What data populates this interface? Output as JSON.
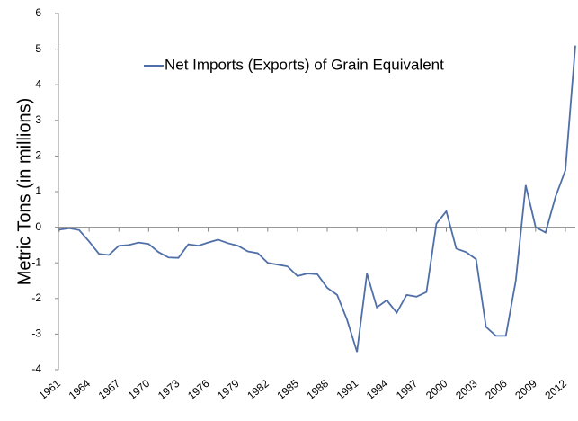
{
  "chart_data": {
    "type": "line",
    "y_label": "Metric Tons (in millions)",
    "x": [
      1961,
      1962,
      1963,
      1964,
      1965,
      1966,
      1967,
      1968,
      1969,
      1970,
      1971,
      1972,
      1973,
      1974,
      1975,
      1976,
      1977,
      1978,
      1979,
      1980,
      1981,
      1982,
      1983,
      1984,
      1985,
      1986,
      1987,
      1988,
      1989,
      1990,
      1991,
      1992,
      1993,
      1994,
      1995,
      1996,
      1997,
      1998,
      1999,
      2000,
      2001,
      2002,
      2003,
      2004,
      2005,
      2006,
      2007,
      2008,
      2009,
      2010,
      2011,
      2012,
      2013
    ],
    "series": [
      {
        "name": "Net Imports (Exports) of Grain Equivalent",
        "color": "#4f6fa8",
        "values": [
          -0.07,
          -0.03,
          -0.08,
          -0.4,
          -0.75,
          -0.78,
          -0.52,
          -0.5,
          -0.43,
          -0.47,
          -0.7,
          -0.85,
          -0.86,
          -0.48,
          -0.52,
          -0.43,
          -0.35,
          -0.45,
          -0.52,
          -0.68,
          -0.73,
          -1.0,
          -1.05,
          -1.1,
          -1.37,
          -1.3,
          -1.32,
          -1.7,
          -1.9,
          -2.6,
          -3.5,
          -1.3,
          -2.25,
          -2.05,
          -2.4,
          -1.9,
          -1.95,
          -1.82,
          0.1,
          0.45,
          -0.6,
          -0.7,
          -0.9,
          -2.8,
          -3.05,
          -3.05,
          -1.5,
          1.18,
          0.0,
          -0.15,
          0.85,
          1.6,
          5.1
        ]
      }
    ],
    "xlim": [
      1961,
      2013
    ],
    "xticks": [
      1961,
      1964,
      1967,
      1970,
      1973,
      1976,
      1979,
      1982,
      1985,
      1988,
      1991,
      1994,
      1997,
      2000,
      2003,
      2006,
      2009,
      2012
    ],
    "ylim": [
      -4,
      6
    ],
    "yticks": [
      -4,
      -3,
      -2,
      -1,
      0,
      1,
      2,
      3,
      4,
      5,
      6
    ],
    "legend": "top"
  }
}
